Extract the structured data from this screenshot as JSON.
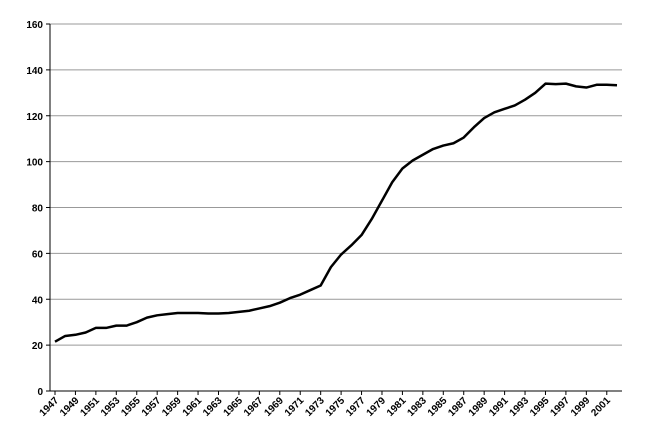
{
  "chart_data": {
    "type": "line",
    "x": [
      1947,
      1948,
      1949,
      1950,
      1951,
      1952,
      1953,
      1954,
      1955,
      1956,
      1957,
      1958,
      1959,
      1960,
      1961,
      1962,
      1963,
      1964,
      1965,
      1966,
      1967,
      1968,
      1969,
      1970,
      1971,
      1972,
      1973,
      1974,
      1975,
      1976,
      1977,
      1978,
      1979,
      1980,
      1981,
      1982,
      1983,
      1984,
      1985,
      1986,
      1987,
      1988,
      1989,
      1990,
      1991,
      1992,
      1993,
      1994,
      1995,
      1996,
      1997,
      1998,
      1999,
      2000,
      2001,
      2002
    ],
    "values": [
      21.5,
      24,
      24.5,
      25.5,
      27.5,
      27.5,
      28.5,
      28.5,
      30,
      32,
      33,
      33.5,
      34,
      34,
      34,
      33.8,
      33.8,
      34,
      34.5,
      35,
      36,
      37,
      38.5,
      40.5,
      42,
      44,
      46,
      54,
      59.5,
      63.5,
      68,
      75,
      83,
      91,
      97,
      100.5,
      103,
      105.5,
      107,
      108,
      110.5,
      115,
      119,
      121.5,
      123,
      124.5,
      127,
      130,
      134,
      133.8,
      134,
      132.8,
      132.3,
      133.5,
      133.5,
      133.3
    ],
    "color": "#000000",
    "xlim": [
      1947,
      2002
    ],
    "xticks": [
      1947,
      1949,
      1951,
      1953,
      1955,
      1957,
      1959,
      1961,
      1963,
      1965,
      1967,
      1969,
      1971,
      1973,
      1975,
      1977,
      1979,
      1981,
      1983,
      1985,
      1987,
      1989,
      1991,
      1993,
      1995,
      1997,
      1999,
      2001
    ],
    "ylim": [
      0,
      160
    ],
    "yticks": [
      0,
      20,
      40,
      60,
      80,
      100,
      120,
      140,
      160
    ],
    "grid": true
  }
}
